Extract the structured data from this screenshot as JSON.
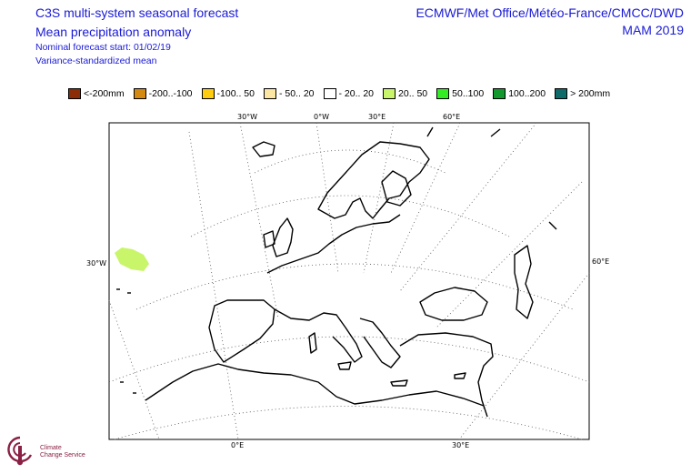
{
  "title": {
    "line1": "C3S multi-system seasonal forecast",
    "line2": "Mean precipitation anomaly",
    "line3": "Nominal forecast start: 01/02/19",
    "line4": "Variance-standardized mean"
  },
  "header_right": {
    "line1": "ECMWF/Met Office/Météo-France/CMCC/DWD",
    "line2": "MAM 2019"
  },
  "legend": [
    {
      "label": "<-200mm",
      "color": "#8b2e08"
    },
    {
      "label": "-200..-100",
      "color": "#d48a12"
    },
    {
      "label": "-100.. 50",
      "color": "#ffcc10"
    },
    {
      "label": "- 50.. 20",
      "color": "#fce6a4"
    },
    {
      "label": "- 20.. 20",
      "color": "#ffffff"
    },
    {
      "label": "20.. 50",
      "color": "#c8f56a"
    },
    {
      "label": "50..100",
      "color": "#33ee22"
    },
    {
      "label": "100..200",
      "color": "#139a2e"
    },
    {
      "label": "> 200mm",
      "color": "#0f6a6a"
    }
  ],
  "map": {
    "top_labels": [
      "30°W",
      "0°W",
      "30°E",
      "60°E"
    ],
    "bottom_labels": [
      "0°E",
      "30°E"
    ],
    "left_label": "30°W",
    "right_label": "60°E",
    "anomaly_color": "#c8f56a"
  },
  "logo": {
    "name": "Climate",
    "sub": "Change Service"
  }
}
